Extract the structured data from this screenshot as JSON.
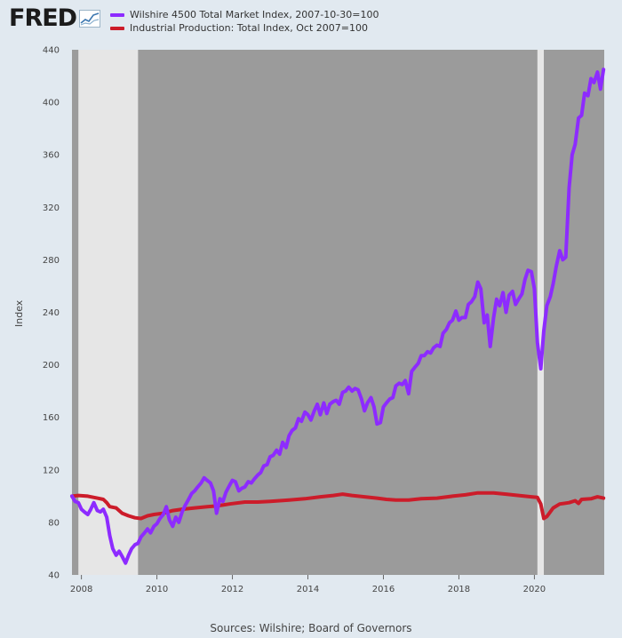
{
  "brand": {
    "logo_text": "FRED"
  },
  "source": "Sources: Wilshire; Board of Governors",
  "chart_data": {
    "type": "line",
    "ylabel": "Index",
    "ylim": [
      40,
      440
    ],
    "yticks": [
      40,
      80,
      120,
      160,
      200,
      240,
      280,
      320,
      360,
      400,
      440
    ],
    "xlim": [
      2007.75,
      2021.85
    ],
    "xticks": [
      {
        "value": 2008,
        "label": "2008"
      },
      {
        "value": 2010,
        "label": "2010"
      },
      {
        "value": 2012,
        "label": "2012"
      },
      {
        "value": 2014,
        "label": "2014"
      },
      {
        "value": 2016,
        "label": "2016"
      },
      {
        "value": 2018,
        "label": "2018"
      },
      {
        "value": 2020,
        "label": "2020"
      }
    ],
    "recessions": [
      {
        "start": 2007.92,
        "end": 2009.5
      },
      {
        "start": 2020.08,
        "end": 2020.25
      }
    ],
    "colors": {
      "plot_bg": "#9b9b9b",
      "recession": "#e6e6e6",
      "page_bg": "#e1e9f0"
    },
    "series": [
      {
        "name": "Wilshire 4500 Total Market Index, 2007-10-30=100",
        "color": "#8d2bff",
        "points": [
          [
            2007.75,
            100
          ],
          [
            2007.83,
            96
          ],
          [
            2007.92,
            95
          ],
          [
            2008.0,
            90
          ],
          [
            2008.08,
            88
          ],
          [
            2008.17,
            86
          ],
          [
            2008.25,
            90
          ],
          [
            2008.33,
            95
          ],
          [
            2008.42,
            89
          ],
          [
            2008.5,
            88
          ],
          [
            2008.58,
            90
          ],
          [
            2008.67,
            84
          ],
          [
            2008.75,
            70
          ],
          [
            2008.83,
            60
          ],
          [
            2008.92,
            55
          ],
          [
            2009.0,
            58
          ],
          [
            2009.08,
            54
          ],
          [
            2009.17,
            49
          ],
          [
            2009.25,
            55
          ],
          [
            2009.33,
            60
          ],
          [
            2009.42,
            63
          ],
          [
            2009.5,
            64
          ],
          [
            2009.58,
            69
          ],
          [
            2009.67,
            72
          ],
          [
            2009.75,
            75
          ],
          [
            2009.83,
            72
          ],
          [
            2009.92,
            77
          ],
          [
            2010.0,
            79
          ],
          [
            2010.08,
            83
          ],
          [
            2010.17,
            86
          ],
          [
            2010.25,
            92
          ],
          [
            2010.33,
            82
          ],
          [
            2010.42,
            77
          ],
          [
            2010.5,
            84
          ],
          [
            2010.58,
            80
          ],
          [
            2010.67,
            88
          ],
          [
            2010.75,
            93
          ],
          [
            2010.83,
            97
          ],
          [
            2010.92,
            102
          ],
          [
            2011.0,
            104
          ],
          [
            2011.08,
            107
          ],
          [
            2011.17,
            110
          ],
          [
            2011.25,
            114
          ],
          [
            2011.33,
            112
          ],
          [
            2011.42,
            110
          ],
          [
            2011.5,
            104
          ],
          [
            2011.58,
            87
          ],
          [
            2011.67,
            98
          ],
          [
            2011.75,
            96
          ],
          [
            2011.83,
            103
          ],
          [
            2011.92,
            108
          ],
          [
            2012.0,
            112
          ],
          [
            2012.08,
            111
          ],
          [
            2012.17,
            104
          ],
          [
            2012.25,
            106
          ],
          [
            2012.33,
            107
          ],
          [
            2012.42,
            111
          ],
          [
            2012.5,
            110
          ],
          [
            2012.58,
            113
          ],
          [
            2012.67,
            116
          ],
          [
            2012.75,
            118
          ],
          [
            2012.83,
            123
          ],
          [
            2012.92,
            124
          ],
          [
            2013.0,
            130
          ],
          [
            2013.08,
            131
          ],
          [
            2013.17,
            135
          ],
          [
            2013.25,
            132
          ],
          [
            2013.33,
            141
          ],
          [
            2013.42,
            137
          ],
          [
            2013.5,
            146
          ],
          [
            2013.58,
            150
          ],
          [
            2013.67,
            152
          ],
          [
            2013.75,
            159
          ],
          [
            2013.83,
            157
          ],
          [
            2013.92,
            164
          ],
          [
            2014.0,
            162
          ],
          [
            2014.08,
            158
          ],
          [
            2014.17,
            165
          ],
          [
            2014.25,
            170
          ],
          [
            2014.33,
            162
          ],
          [
            2014.42,
            171
          ],
          [
            2014.5,
            163
          ],
          [
            2014.58,
            170
          ],
          [
            2014.67,
            172
          ],
          [
            2014.75,
            173
          ],
          [
            2014.83,
            170
          ],
          [
            2014.92,
            179
          ],
          [
            2015.0,
            180
          ],
          [
            2015.08,
            183
          ],
          [
            2015.17,
            180
          ],
          [
            2015.25,
            182
          ],
          [
            2015.33,
            181
          ],
          [
            2015.42,
            174
          ],
          [
            2015.5,
            165
          ],
          [
            2015.58,
            171
          ],
          [
            2015.67,
            175
          ],
          [
            2015.75,
            168
          ],
          [
            2015.83,
            155
          ],
          [
            2015.92,
            156
          ],
          [
            2016.0,
            168
          ],
          [
            2016.08,
            171
          ],
          [
            2016.17,
            174
          ],
          [
            2016.25,
            175
          ],
          [
            2016.33,
            184
          ],
          [
            2016.42,
            186
          ],
          [
            2016.5,
            185
          ],
          [
            2016.58,
            188
          ],
          [
            2016.67,
            178
          ],
          [
            2016.75,
            195
          ],
          [
            2016.83,
            198
          ],
          [
            2016.92,
            201
          ],
          [
            2017.0,
            207
          ],
          [
            2017.08,
            207
          ],
          [
            2017.17,
            210
          ],
          [
            2017.25,
            209
          ],
          [
            2017.33,
            213
          ],
          [
            2017.42,
            215
          ],
          [
            2017.5,
            214
          ],
          [
            2017.58,
            224
          ],
          [
            2017.67,
            227
          ],
          [
            2017.75,
            232
          ],
          [
            2017.83,
            234
          ],
          [
            2017.92,
            241
          ],
          [
            2018.0,
            234
          ],
          [
            2018.08,
            236
          ],
          [
            2018.17,
            236
          ],
          [
            2018.25,
            246
          ],
          [
            2018.33,
            248
          ],
          [
            2018.42,
            252
          ],
          [
            2018.5,
            263
          ],
          [
            2018.58,
            258
          ],
          [
            2018.67,
            232
          ],
          [
            2018.75,
            238
          ],
          [
            2018.83,
            214
          ],
          [
            2018.92,
            236
          ],
          [
            2019.0,
            250
          ],
          [
            2019.08,
            245
          ],
          [
            2019.17,
            255
          ],
          [
            2019.25,
            240
          ],
          [
            2019.33,
            253
          ],
          [
            2019.42,
            256
          ],
          [
            2019.5,
            246
          ],
          [
            2019.58,
            250
          ],
          [
            2019.67,
            254
          ],
          [
            2019.75,
            265
          ],
          [
            2019.83,
            272
          ],
          [
            2019.92,
            271
          ],
          [
            2020.0,
            258
          ],
          [
            2020.08,
            217
          ],
          [
            2020.17,
            197
          ],
          [
            2020.25,
            226
          ],
          [
            2020.33,
            245
          ],
          [
            2020.42,
            252
          ],
          [
            2020.5,
            262
          ],
          [
            2020.58,
            275
          ],
          [
            2020.67,
            287
          ],
          [
            2020.75,
            280
          ],
          [
            2020.83,
            282
          ],
          [
            2020.92,
            335
          ],
          [
            2021.0,
            360
          ],
          [
            2021.08,
            368
          ],
          [
            2021.17,
            388
          ],
          [
            2021.25,
            390
          ],
          [
            2021.33,
            407
          ],
          [
            2021.42,
            405
          ],
          [
            2021.5,
            418
          ],
          [
            2021.58,
            415
          ],
          [
            2021.67,
            423
          ],
          [
            2021.75,
            410
          ],
          [
            2021.83,
            425
          ]
        ]
      },
      {
        "name": "Industrial Production: Total Index, Oct 2007=100",
        "color": "#cc1c2a",
        "points": [
          [
            2007.75,
            100
          ],
          [
            2007.92,
            100.5
          ],
          [
            2008.17,
            100
          ],
          [
            2008.42,
            98.5
          ],
          [
            2008.58,
            97.5
          ],
          [
            2008.67,
            95
          ],
          [
            2008.75,
            92
          ],
          [
            2008.92,
            91
          ],
          [
            2009.08,
            87
          ],
          [
            2009.25,
            85
          ],
          [
            2009.42,
            83.5
          ],
          [
            2009.58,
            83
          ],
          [
            2009.75,
            85
          ],
          [
            2009.92,
            86
          ],
          [
            2010.17,
            87
          ],
          [
            2010.42,
            89
          ],
          [
            2010.67,
            90
          ],
          [
            2011.0,
            91
          ],
          [
            2011.33,
            92
          ],
          [
            2011.58,
            92.5
          ],
          [
            2011.92,
            94
          ],
          [
            2012.33,
            95.5
          ],
          [
            2012.67,
            95.5
          ],
          [
            2013.0,
            96
          ],
          [
            2013.5,
            97
          ],
          [
            2013.92,
            98
          ],
          [
            2014.33,
            99.5
          ],
          [
            2014.67,
            100.5
          ],
          [
            2014.92,
            101.5
          ],
          [
            2015.17,
            100.5
          ],
          [
            2015.5,
            99.5
          ],
          [
            2015.83,
            98.5
          ],
          [
            2016.08,
            97.5
          ],
          [
            2016.33,
            97
          ],
          [
            2016.67,
            97
          ],
          [
            2017.0,
            98
          ],
          [
            2017.42,
            98.5
          ],
          [
            2017.83,
            100
          ],
          [
            2018.17,
            101
          ],
          [
            2018.5,
            102.5
          ],
          [
            2018.92,
            102.5
          ],
          [
            2019.25,
            101.5
          ],
          [
            2019.58,
            100.5
          ],
          [
            2019.92,
            99.5
          ],
          [
            2020.08,
            99
          ],
          [
            2020.17,
            94
          ],
          [
            2020.25,
            83
          ],
          [
            2020.33,
            84.5
          ],
          [
            2020.5,
            91
          ],
          [
            2020.67,
            94
          ],
          [
            2020.92,
            95
          ],
          [
            2021.08,
            96.5
          ],
          [
            2021.17,
            94.5
          ],
          [
            2021.25,
            97.5
          ],
          [
            2021.5,
            98
          ],
          [
            2021.67,
            99.5
          ],
          [
            2021.83,
            98.5
          ]
        ]
      }
    ]
  }
}
